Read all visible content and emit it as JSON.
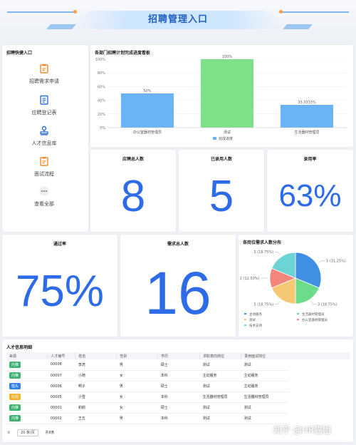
{
  "header": {
    "title": "招聘管理入口"
  },
  "quick_entry": {
    "title": "招聘快捷入口",
    "items": [
      {
        "label": "招聘需求申请",
        "icon": "clipboard-icon"
      },
      {
        "label": "应聘登记表",
        "icon": "document-icon"
      },
      {
        "label": "人才信息库",
        "icon": "stamp-icon"
      },
      {
        "label": "面试流程",
        "icon": "clipboard-icon"
      },
      {
        "label": "查看全部",
        "icon": "more-icon"
      }
    ]
  },
  "progress_chart": {
    "title": "各部门招聘计划完成进度看板",
    "chart_data": {
      "type": "bar",
      "categories": [
        "办公室器材管理员",
        "测试",
        "生活器材管理员"
      ],
      "series": [
        {
          "name": "完成进度",
          "values": [
            50,
            100,
            33.3333
          ]
        }
      ],
      "data_labels": [
        "50%",
        "100%",
        "33.3333%"
      ],
      "ylim": [
        0,
        100
      ],
      "yticks": [
        "0%",
        "20%",
        "40%",
        "60%",
        "80%",
        "100%"
      ],
      "legend": "bottom",
      "colors": [
        "#6ab4f5",
        "#7fe08a",
        "#6ab4f5"
      ]
    }
  },
  "stats": {
    "applicants": {
      "title": "应聘总人数",
      "value": "8"
    },
    "hired": {
      "title": "已录用人数",
      "value": "5"
    },
    "hire_rate": {
      "title": "录用率",
      "value": "63%"
    },
    "pass_rate": {
      "title": "通过率",
      "value": "75%"
    },
    "demand": {
      "title": "需求总人数",
      "value": "16"
    }
  },
  "demand_chart": {
    "title": "各岗位需求人数分布",
    "chart_data": {
      "type": "pie",
      "slices": [
        {
          "name": "主动服务",
          "value": 5,
          "label": "5 (31.25%)",
          "color": "#3f8fe3"
        },
        {
          "name": "生活器材管理员",
          "value": 3,
          "label": "3 (18.75%)",
          "color": "#6ddc8a"
        },
        {
          "name": "测试",
          "value": 3,
          "label": "3 (18.75%)",
          "color": "#f7c873"
        },
        {
          "name": "办公室器材管理员",
          "value": 2,
          "label": "2 (12.50%)",
          "color": "#f4857a"
        },
        {
          "name": "技术支持",
          "value": 3,
          "label": "3 (18.75%)",
          "color": "#6ed3d3"
        }
      ],
      "legend": "bottom"
    }
  },
  "talent_table": {
    "title": "人才信息明细",
    "columns": [
      "来源",
      "人才编号",
      "姓名",
      "性别",
      "学历",
      "求职意向岗位",
      "录用面试岗位"
    ],
    "rows": [
      {
        "source": "内推",
        "source_color": "#3cb371",
        "id": "00008",
        "name": "李虎",
        "gender": "男",
        "edu": "硕士",
        "intent": "测试",
        "post": "测试"
      },
      {
        "source": "内推",
        "source_color": "#3cb371",
        "id": "00007",
        "name": "小随",
        "gender": "女",
        "edu": "本科",
        "intent": "主动服务",
        "post": "主动服务"
      },
      {
        "source": "猎头",
        "source_color": "#2f80ed",
        "id": "00006",
        "name": "啊子",
        "gender": "男",
        "edu": "硕士",
        "intent": "测试",
        "post": "主动服务"
      },
      {
        "source": "社招",
        "source_color": "#f0b429",
        "id": "00005",
        "name": "小雪",
        "gender": "女",
        "edu": "本科",
        "intent": "生活器材管理员",
        "post": "生活器材管理员"
      },
      {
        "source": "内推",
        "source_color": "#3cb371",
        "id": "00001",
        "name": "莉莉",
        "gender": "女",
        "edu": "硕士",
        "intent": "测试",
        "post": "测试"
      },
      {
        "source": "内推",
        "source_color": "#3cb371",
        "id": "00002",
        "name": "王五",
        "gender": "男",
        "edu": "本科",
        "intent": "测试",
        "post": "测试"
      }
    ],
    "pager": {
      "first": "①",
      "page_size": "20 条/页",
      "total": "共8条"
    }
  },
  "watermark": "知乎 @HR猫姐"
}
